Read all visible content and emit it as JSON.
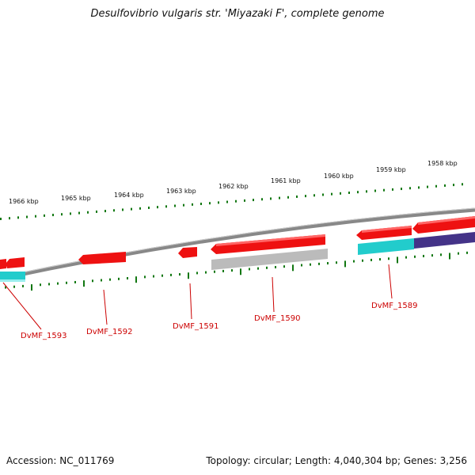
{
  "title": "Desulfovibrio vulgaris str. 'Miyazaki F', complete genome",
  "footer": {
    "accession": "Accession: NC_011769",
    "summary": "Topology: circular; Length: 4,040,304 bp; Genes: 3,256"
  },
  "colors": {
    "forward_gene": "#ee1111",
    "reverse_gene": "#bbbbbb",
    "cyan_feature": "#22cccc",
    "purple_feature": "#443388",
    "tick": "#117711",
    "label": "#cc0000",
    "backbone": "#888888"
  },
  "kbp_labels": [
    "1966 kbp",
    "1965 kbp",
    "1964 kbp",
    "1963 kbp",
    "1962 kbp",
    "1961 kbp",
    "1960 kbp",
    "1959 kbp",
    "1958 kbp"
  ],
  "gene_labels": [
    "DvMF_1593",
    "DvMF_1592",
    "DvMF_1591",
    "DvMF_1590",
    "DvMF_1589"
  ]
}
